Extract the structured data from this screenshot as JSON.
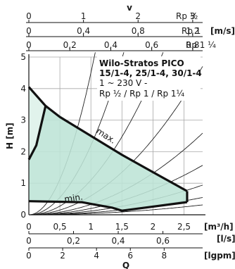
{
  "chart_data": {
    "type": "area",
    "ylabel": "H [m]",
    "xlabel": "Q",
    "xlim": [
      0,
      2.8
    ],
    "ylim": [
      0,
      5
    ],
    "y_ticks": [
      "0",
      "1",
      "2",
      "3",
      "4",
      "5"
    ],
    "q_axis_main": {
      "unit": "[m³/h]",
      "ticks": [
        {
          "v": 0,
          "label": "0"
        },
        {
          "v": 0.5,
          "label": "0,5"
        },
        {
          "v": 1,
          "label": "1"
        },
        {
          "v": 1.5,
          "label": "1,5"
        },
        {
          "v": 2,
          "label": "2"
        },
        {
          "v": 2.5,
          "label": "2,5"
        }
      ]
    },
    "q_axis_ls": {
      "unit": "[l/s]",
      "ticks": [
        {
          "v": 0,
          "label": "0"
        },
        {
          "v": 0.72,
          "label": "0,2"
        },
        {
          "v": 1.44,
          "label": "0,4"
        },
        {
          "v": 2.16,
          "label": "0,6"
        }
      ]
    },
    "q_axis_lgpm": {
      "unit": "[lgpm]",
      "ticks": [
        {
          "v": 0,
          "label": "0"
        },
        {
          "v": 0.545,
          "label": "2"
        },
        {
          "v": 1.09,
          "label": "4"
        },
        {
          "v": 1.635,
          "label": "6"
        },
        {
          "v": 2.18,
          "label": "8"
        }
      ]
    },
    "v_axis_title": "v",
    "v_axis_half": {
      "unit": "Rp ½",
      "ticks": [
        {
          "v": 0,
          "label": "0"
        },
        {
          "v": 0.88,
          "label": "1"
        },
        {
          "v": 1.76,
          "label": "2"
        },
        {
          "v": 2.64,
          "label": "3"
        }
      ]
    },
    "v_axis_one": {
      "unit": "Rp 1",
      "ticks": [
        {
          "v": 0,
          "label": "0"
        },
        {
          "v": 0.88,
          "label": "0,4"
        },
        {
          "v": 1.76,
          "label": "0,8"
        },
        {
          "v": 2.64,
          "label": "1,2"
        }
      ],
      "extra_unit": "[m/s]"
    },
    "v_axis_quarter": {
      "unit": "Rp 1 ¼",
      "ticks": [
        {
          "v": 0,
          "label": "0"
        },
        {
          "v": 0.66,
          "label": "0,2"
        },
        {
          "v": 1.32,
          "label": "0,4"
        },
        {
          "v": 1.98,
          "label": "0,6"
        },
        {
          "v": 2.64,
          "label": "0,8"
        }
      ]
    },
    "info_box": {
      "line1": "Wilo-Stratos PICO",
      "line2": "15/1-4, 25/1-4, 30/1-4",
      "line3": "1 ~ 230 V -",
      "line4": "Rp ½ / Rp 1 / Rp 1¼"
    },
    "label_max": "max.",
    "label_min": "min.",
    "region_color": "#bde4d6",
    "region_light_color": "#e1f3ec",
    "outline_points": [
      {
        "q": 0,
        "h": 4.05
      },
      {
        "q": 0.27,
        "h": 3.45
      },
      {
        "q": 1.12,
        "h": 2.35
      },
      {
        "q": 2.55,
        "h": 0.75
      },
      {
        "q": 2.55,
        "h": 0.4
      },
      {
        "q": 1.5,
        "h": 0.13
      },
      {
        "q": 1.35,
        "h": 0.22
      },
      {
        "q": 0.85,
        "h": 0.4
      },
      {
        "q": 0,
        "h": 0.43
      }
    ],
    "max_curve": [
      {
        "q": 0,
        "h": 4.05
      },
      {
        "q": 0.27,
        "h": 3.45
      },
      {
        "q": 0.5,
        "h": 3.1
      },
      {
        "q": 1.0,
        "h": 2.5
      },
      {
        "q": 1.5,
        "h": 1.9
      },
      {
        "q": 2.0,
        "h": 1.35
      },
      {
        "q": 2.55,
        "h": 0.75
      }
    ],
    "min_curve": [
      {
        "q": 0,
        "h": 0.43
      },
      {
        "q": 0.85,
        "h": 0.4
      },
      {
        "q": 1.35,
        "h": 0.22
      },
      {
        "q": 1.5,
        "h": 0.13
      },
      {
        "q": 2.55,
        "h": 0.4
      }
    ],
    "lower_left_curve": [
      {
        "q": 0,
        "h": 1.75
      },
      {
        "q": 0.12,
        "h": 2.2
      },
      {
        "q": 0.27,
        "h": 3.45
      }
    ],
    "system_curves_k": [
      0.04,
      0.07,
      0.12,
      0.2,
      0.33,
      0.6,
      1.1,
      2.2,
      4.5
    ]
  }
}
